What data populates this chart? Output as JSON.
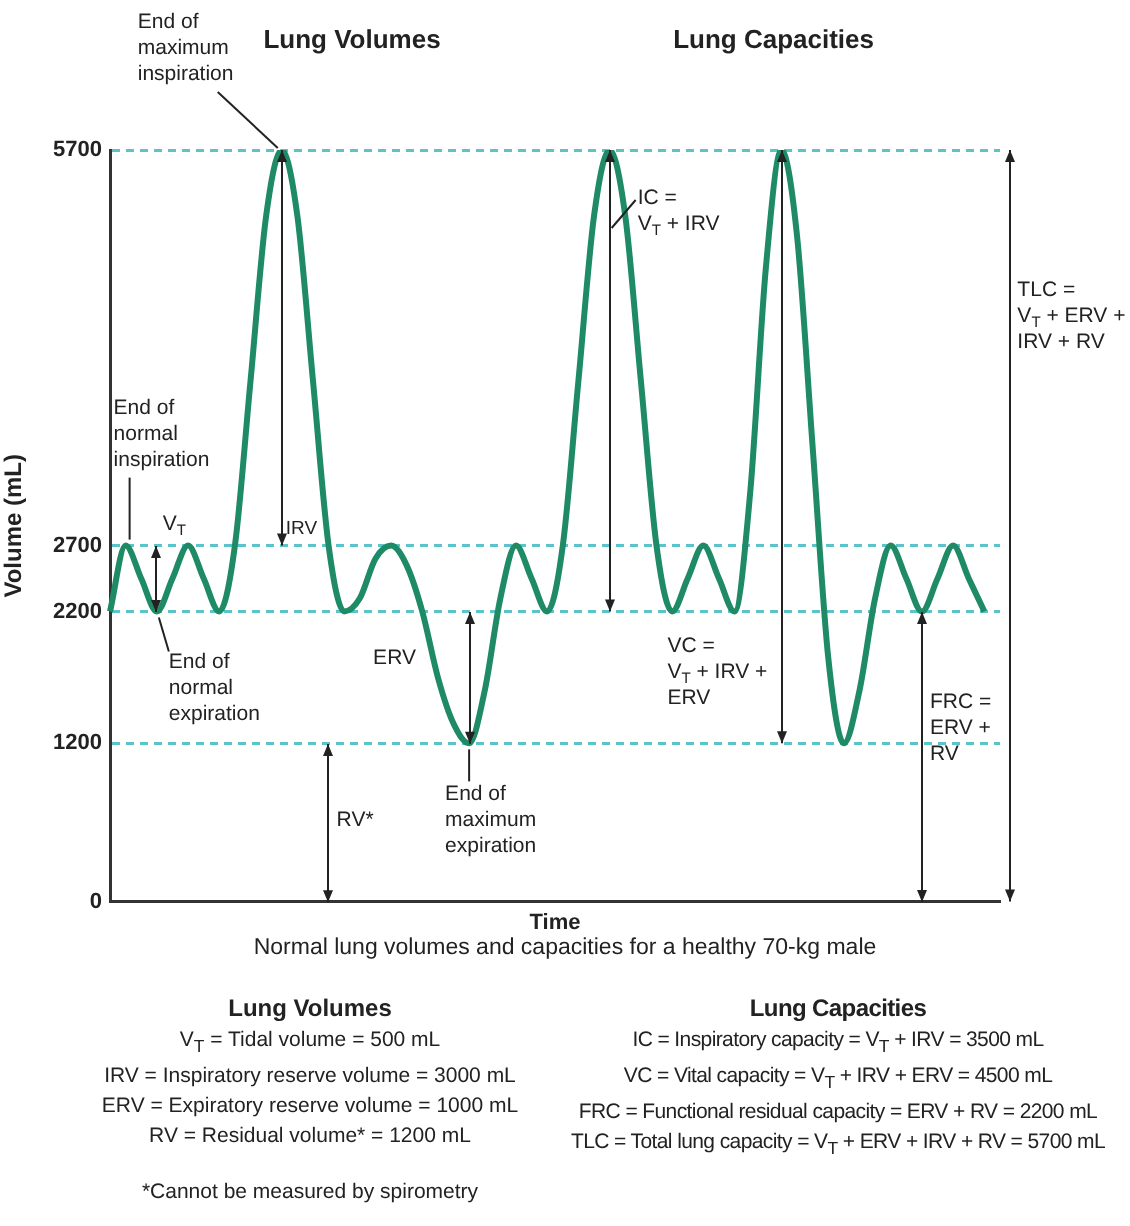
{
  "chart_data": {
    "type": "line",
    "subtitle": "Normal lung volumes and capacities for a healthy 70-kg male",
    "xlabel": "Time",
    "ylabel": "Volume (mL)",
    "categories": [
      null,
      null,
      null,
      null,
      null,
      null,
      null,
      null,
      null,
      null,
      null,
      null,
      null,
      null,
      null,
      null,
      null,
      null,
      null,
      null,
      null,
      null,
      null,
      null,
      null,
      null,
      null,
      null,
      null,
      null,
      null,
      null,
      null,
      null,
      null,
      null,
      null,
      null,
      null,
      null,
      null,
      null,
      null,
      null,
      null,
      null,
      null,
      null,
      null,
      null,
      null,
      null,
      null,
      null,
      null,
      null,
      null,
      null
    ],
    "series": [
      {
        "color": "#1f8a66",
        "values": [
          2200,
          2700,
          2450,
          2200,
          2450,
          2700,
          2450,
          2200,
          2700,
          3950,
          5200,
          5700,
          5200,
          3950,
          2700,
          2200,
          2300,
          2600,
          2700,
          2550,
          2200,
          1700,
          1350,
          1200,
          1600,
          2300,
          2700,
          2450,
          2200,
          2700,
          3950,
          5200,
          5700,
          5200,
          3950,
          2700,
          2200,
          2450,
          2700,
          2450,
          2200,
          3100,
          4800,
          5700,
          5050,
          3450,
          1850,
          1200,
          1600,
          2300,
          2700,
          2450,
          2200,
          2450,
          2700,
          2450,
          2200,
          null
        ]
      }
    ],
    "ylim": [
      0,
      5700
    ],
    "yticks": [
      0,
      1200,
      2200,
      2700,
      5700
    ],
    "grid": "y",
    "tick_labels": "y",
    "annotations": [
      "Lung Volumes",
      "Lung Capacities",
      "End of maximum inspiration",
      "End of normal inspiration",
      "V$_{T}$",
      "IRV",
      "End of normal expiration",
      "ERV",
      "End of maximum expiration",
      "RV*",
      "IC = V$_{T}$ + IRV",
      "VC = V$_{T}$ + IRV + ERV",
      "FRC = ERV + RV",
      "TLC = V$_{T}$ + ERV + IRV + RV",
      "Lung Volumes",
      "V$_{T}$ = Tidal volume = 500 mL",
      "IRV = Inspiratory reserve volume = 3000 mL",
      "ERV = Expiratory reserve volume = 1000 mL",
      "RV = Residual volume* = 1200 mL",
      "*Cannot be measured by spirometry",
      "Lung Capacities",
      "IC = Inspiratory capacity = V$_{T}$ + IRV = 3500 mL",
      "VC = Vital capacity = V$_{T}$ + IRV + ERV = 4500 mL",
      "FRC = Functional residual capacity = ERV + RV = 2200 mL",
      "TLC = Total lung capacity = V$_{T}$ + ERV + IRV + RV = 5700 mL"
    ]
  }
}
